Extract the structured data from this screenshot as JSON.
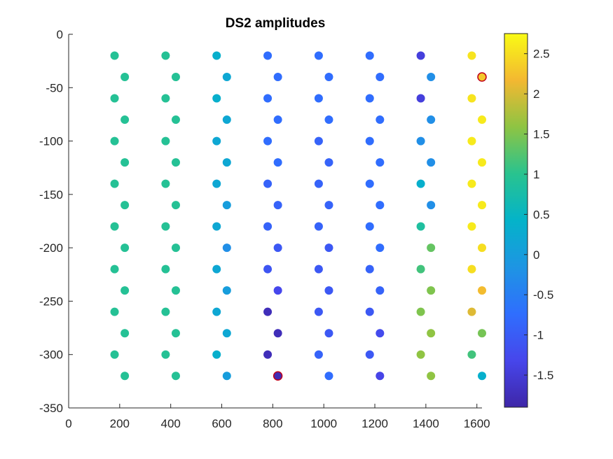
{
  "chart_data": {
    "type": "scatter",
    "title": "DS2 amplitudes",
    "xlabel": "",
    "ylabel": "",
    "xlim": [
      0,
      1620
    ],
    "ylim": [
      -350,
      0
    ],
    "x_ticks": [
      0,
      200,
      400,
      600,
      800,
      1000,
      1200,
      1400,
      1600
    ],
    "y_ticks": [
      0,
      -50,
      -100,
      -150,
      -200,
      -250,
      -300,
      -350
    ],
    "x_tick_labels": [
      "0",
      "200",
      "400",
      "600",
      "800",
      "1000",
      "1200",
      "1400",
      "1600"
    ],
    "y_tick_labels": [
      "0",
      "-50",
      "-100",
      "-150",
      "-200",
      "-250",
      "-300",
      "-350"
    ],
    "grid": false,
    "colorbar": {
      "colormap": "parula",
      "range": [
        -1.9,
        2.75
      ],
      "ticks": [
        2.5,
        2,
        1.5,
        1,
        0.5,
        0,
        -0.5,
        -1,
        -1.5
      ],
      "tick_labels": [
        "2.5",
        "2",
        "1.5",
        "1",
        "0.5",
        "0",
        "-0.5",
        "-1",
        "-1.5"
      ]
    },
    "highlight_color": "#c0001a",
    "points": [
      {
        "x": 180,
        "y": -20,
        "v": 0.95
      },
      {
        "x": 380,
        "y": -20,
        "v": 0.95
      },
      {
        "x": 580,
        "y": -20,
        "v": 0.35
      },
      {
        "x": 780,
        "y": -20,
        "v": -0.75
      },
      {
        "x": 980,
        "y": -20,
        "v": -0.75
      },
      {
        "x": 1180,
        "y": -20,
        "v": -0.75
      },
      {
        "x": 1380,
        "y": -20,
        "v": -1.45
      },
      {
        "x": 1580,
        "y": -20,
        "v": 2.55
      },
      {
        "x": 220,
        "y": -40,
        "v": 0.95
      },
      {
        "x": 420,
        "y": -40,
        "v": 0.95
      },
      {
        "x": 620,
        "y": -40,
        "v": 0.2
      },
      {
        "x": 820,
        "y": -40,
        "v": -0.75
      },
      {
        "x": 1020,
        "y": -40,
        "v": -0.75
      },
      {
        "x": 1220,
        "y": -40,
        "v": -0.75
      },
      {
        "x": 1420,
        "y": -40,
        "v": -0.25
      },
      {
        "x": 1620,
        "y": -40,
        "v": 2.3,
        "highlight": true
      },
      {
        "x": 180,
        "y": -60,
        "v": 0.95
      },
      {
        "x": 380,
        "y": -60,
        "v": 0.95
      },
      {
        "x": 580,
        "y": -60,
        "v": 0.35
      },
      {
        "x": 780,
        "y": -60,
        "v": -0.75
      },
      {
        "x": 980,
        "y": -60,
        "v": -0.75
      },
      {
        "x": 1180,
        "y": -60,
        "v": -0.75
      },
      {
        "x": 1380,
        "y": -60,
        "v": -1.45
      },
      {
        "x": 1580,
        "y": -60,
        "v": 2.55
      },
      {
        "x": 220,
        "y": -80,
        "v": 0.95
      },
      {
        "x": 420,
        "y": -80,
        "v": 0.95
      },
      {
        "x": 620,
        "y": -80,
        "v": 0.2
      },
      {
        "x": 820,
        "y": -80,
        "v": -0.75
      },
      {
        "x": 1020,
        "y": -80,
        "v": -0.75
      },
      {
        "x": 1220,
        "y": -80,
        "v": -0.75
      },
      {
        "x": 1420,
        "y": -80,
        "v": -0.25
      },
      {
        "x": 1620,
        "y": -80,
        "v": 2.6
      },
      {
        "x": 180,
        "y": -100,
        "v": 0.95
      },
      {
        "x": 380,
        "y": -100,
        "v": 0.95
      },
      {
        "x": 580,
        "y": -100,
        "v": 0.2
      },
      {
        "x": 780,
        "y": -100,
        "v": -0.75
      },
      {
        "x": 980,
        "y": -100,
        "v": -0.9
      },
      {
        "x": 1180,
        "y": -100,
        "v": -0.75
      },
      {
        "x": 1380,
        "y": -100,
        "v": -0.25
      },
      {
        "x": 1580,
        "y": -100,
        "v": 2.6
      },
      {
        "x": 220,
        "y": -120,
        "v": 0.95
      },
      {
        "x": 420,
        "y": -120,
        "v": 0.95
      },
      {
        "x": 620,
        "y": -120,
        "v": 0.2
      },
      {
        "x": 820,
        "y": -120,
        "v": -0.75
      },
      {
        "x": 1020,
        "y": -120,
        "v": -0.9
      },
      {
        "x": 1220,
        "y": -120,
        "v": -0.75
      },
      {
        "x": 1420,
        "y": -120,
        "v": -0.25
      },
      {
        "x": 1620,
        "y": -120,
        "v": 2.6
      },
      {
        "x": 180,
        "y": -140,
        "v": 0.95
      },
      {
        "x": 380,
        "y": -140,
        "v": 0.95
      },
      {
        "x": 580,
        "y": -140,
        "v": 0.2
      },
      {
        "x": 780,
        "y": -140,
        "v": -0.9
      },
      {
        "x": 980,
        "y": -140,
        "v": -0.9
      },
      {
        "x": 1180,
        "y": -140,
        "v": -0.75
      },
      {
        "x": 1380,
        "y": -140,
        "v": 0.35
      },
      {
        "x": 1580,
        "y": -140,
        "v": 2.6
      },
      {
        "x": 220,
        "y": -160,
        "v": 0.95
      },
      {
        "x": 420,
        "y": -160,
        "v": 0.95
      },
      {
        "x": 620,
        "y": -160,
        "v": 0.0
      },
      {
        "x": 820,
        "y": -160,
        "v": -0.9
      },
      {
        "x": 1020,
        "y": -160,
        "v": -0.9
      },
      {
        "x": 1220,
        "y": -160,
        "v": -0.75
      },
      {
        "x": 1420,
        "y": -160,
        "v": -0.25
      },
      {
        "x": 1620,
        "y": -160,
        "v": 2.6
      },
      {
        "x": 180,
        "y": -180,
        "v": 0.95
      },
      {
        "x": 380,
        "y": -180,
        "v": 0.95
      },
      {
        "x": 580,
        "y": -180,
        "v": 0.2
      },
      {
        "x": 780,
        "y": -180,
        "v": -0.9
      },
      {
        "x": 980,
        "y": -180,
        "v": -0.9
      },
      {
        "x": 1180,
        "y": -180,
        "v": -0.75
      },
      {
        "x": 1380,
        "y": -180,
        "v": 0.85
      },
      {
        "x": 1580,
        "y": -180,
        "v": 2.6
      },
      {
        "x": 220,
        "y": -200,
        "v": 0.95
      },
      {
        "x": 420,
        "y": -200,
        "v": 0.95
      },
      {
        "x": 620,
        "y": -200,
        "v": -0.25
      },
      {
        "x": 820,
        "y": -200,
        "v": -1.05
      },
      {
        "x": 1020,
        "y": -200,
        "v": -1.05
      },
      {
        "x": 1220,
        "y": -200,
        "v": -0.75
      },
      {
        "x": 1420,
        "y": -200,
        "v": 1.35
      },
      {
        "x": 1620,
        "y": -200,
        "v": 2.5
      },
      {
        "x": 180,
        "y": -220,
        "v": 0.95
      },
      {
        "x": 380,
        "y": -220,
        "v": 0.95
      },
      {
        "x": 580,
        "y": -220,
        "v": 0.2
      },
      {
        "x": 780,
        "y": -220,
        "v": -1.1
      },
      {
        "x": 980,
        "y": -220,
        "v": -1.05
      },
      {
        "x": 1180,
        "y": -220,
        "v": -0.9
      },
      {
        "x": 1380,
        "y": -220,
        "v": 1.15
      },
      {
        "x": 1580,
        "y": -220,
        "v": 2.5
      },
      {
        "x": 220,
        "y": -240,
        "v": 0.95
      },
      {
        "x": 420,
        "y": -240,
        "v": 0.95
      },
      {
        "x": 620,
        "y": -240,
        "v": 0.0
      },
      {
        "x": 820,
        "y": -240,
        "v": -1.3
      },
      {
        "x": 1020,
        "y": -240,
        "v": -1.05
      },
      {
        "x": 1220,
        "y": -240,
        "v": -0.9
      },
      {
        "x": 1420,
        "y": -240,
        "v": 1.5
      },
      {
        "x": 1620,
        "y": -240,
        "v": 2.2
      },
      {
        "x": 180,
        "y": -260,
        "v": 0.95
      },
      {
        "x": 380,
        "y": -260,
        "v": 0.95
      },
      {
        "x": 580,
        "y": -260,
        "v": 0.2
      },
      {
        "x": 780,
        "y": -260,
        "v": -1.75
      },
      {
        "x": 980,
        "y": -260,
        "v": -1.05
      },
      {
        "x": 1180,
        "y": -260,
        "v": -1.05
      },
      {
        "x": 1380,
        "y": -260,
        "v": 1.5
      },
      {
        "x": 1580,
        "y": -260,
        "v": 2.05
      },
      {
        "x": 220,
        "y": -280,
        "v": 0.95
      },
      {
        "x": 420,
        "y": -280,
        "v": 0.95
      },
      {
        "x": 620,
        "y": -280,
        "v": 0.2
      },
      {
        "x": 820,
        "y": -280,
        "v": -1.75
      },
      {
        "x": 1020,
        "y": -280,
        "v": -1.05
      },
      {
        "x": 1220,
        "y": -280,
        "v": -1.25
      },
      {
        "x": 1420,
        "y": -280,
        "v": 1.6
      },
      {
        "x": 1620,
        "y": -280,
        "v": 1.45
      },
      {
        "x": 180,
        "y": -300,
        "v": 0.95
      },
      {
        "x": 380,
        "y": -300,
        "v": 0.95
      },
      {
        "x": 580,
        "y": -300,
        "v": 0.35
      },
      {
        "x": 780,
        "y": -300,
        "v": -1.75
      },
      {
        "x": 980,
        "y": -300,
        "v": -0.9
      },
      {
        "x": 1180,
        "y": -300,
        "v": -1.05
      },
      {
        "x": 1380,
        "y": -300,
        "v": 1.6
      },
      {
        "x": 1580,
        "y": -300,
        "v": 1.15
      },
      {
        "x": 220,
        "y": -320,
        "v": 0.95
      },
      {
        "x": 420,
        "y": -320,
        "v": 0.95
      },
      {
        "x": 620,
        "y": -320,
        "v": 0.0
      },
      {
        "x": 820,
        "y": -320,
        "v": -1.8,
        "highlight": true
      },
      {
        "x": 1020,
        "y": -320,
        "v": -0.75
      },
      {
        "x": 1220,
        "y": -320,
        "v": -1.35
      },
      {
        "x": 1420,
        "y": -320,
        "v": 1.6
      },
      {
        "x": 1620,
        "y": -320,
        "v": 0.35
      }
    ]
  }
}
